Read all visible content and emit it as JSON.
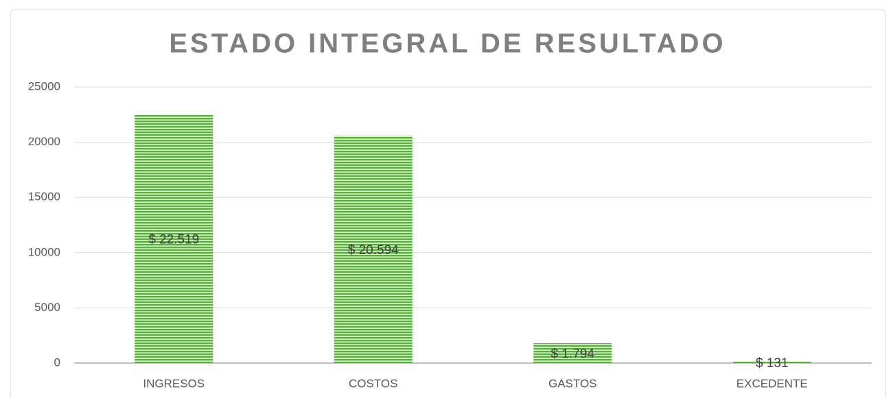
{
  "chart_data": {
    "type": "bar",
    "title": "ESTADO INTEGRAL DE RESULTADO",
    "categories": [
      "INGRESOS",
      "COSTOS",
      "GASTOS",
      "EXCEDENTE"
    ],
    "values": [
      22519,
      20594,
      1794,
      131
    ],
    "value_labels": [
      "$ 22.519",
      "$ 20.594",
      "$ 1.794",
      "$ 131"
    ],
    "color": "#5aae3c",
    "ylim": [
      0,
      25000
    ],
    "yticks": [
      0,
      5000,
      10000,
      15000,
      20000,
      25000
    ],
    "grid": true
  }
}
